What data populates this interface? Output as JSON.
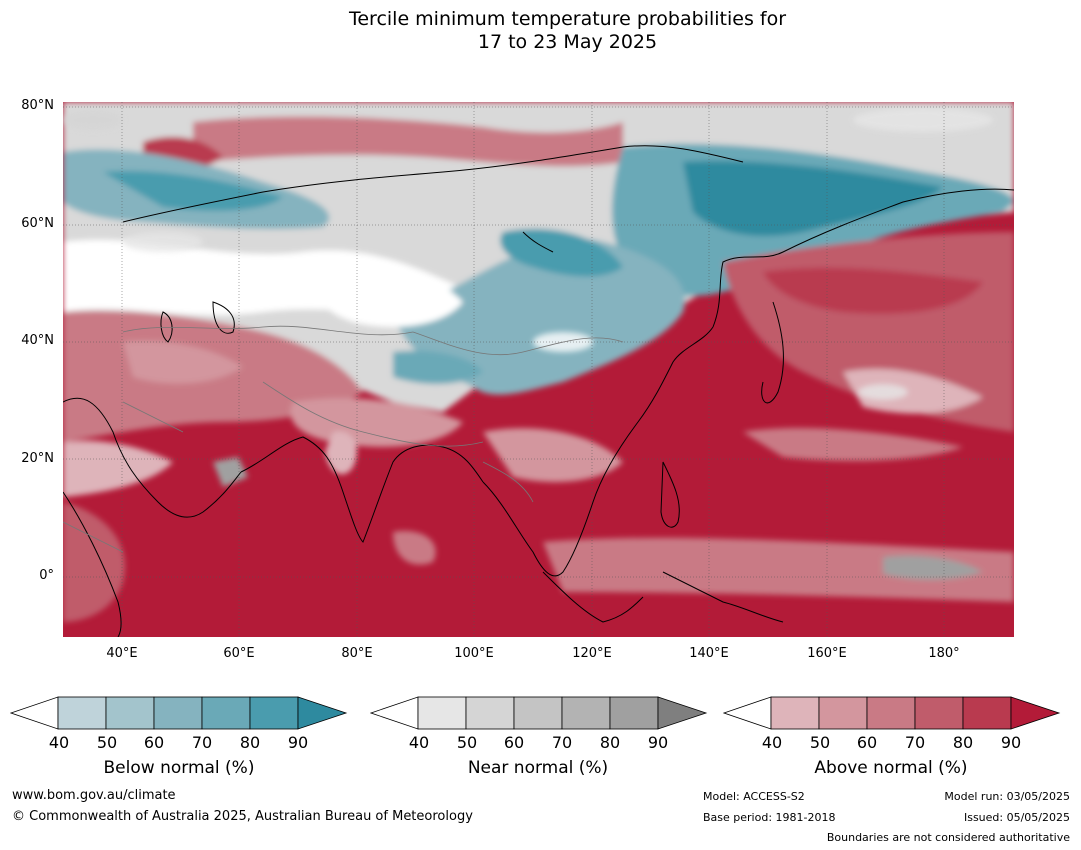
{
  "title": {
    "line1": "Tercile minimum temperature probabilities for",
    "line2": "17 to 23 May 2025"
  },
  "map": {
    "lat_labels": [
      "80°N",
      "60°N",
      "40°N",
      "20°N",
      "0°"
    ],
    "lon_labels": [
      "40°E",
      "60°E",
      "80°E",
      "100°E",
      "120°E",
      "140°E",
      "160°E",
      "180°"
    ]
  },
  "colorbars": [
    {
      "label": "Below normal (%)",
      "ticks": [
        "40",
        "50",
        "60",
        "70",
        "80",
        "90"
      ],
      "colors": [
        "#ffffff",
        "#bfd3da",
        "#a3c4cc",
        "#85b3bf",
        "#6aa9b7",
        "#4a9cae",
        "#2e8a9f"
      ]
    },
    {
      "label": "Near normal (%)",
      "ticks": [
        "40",
        "50",
        "60",
        "70",
        "80",
        "90"
      ],
      "colors": [
        "#ffffff",
        "#e6e6e6",
        "#d5d5d5",
        "#c4c4c4",
        "#b3b3b3",
        "#a0a0a0",
        "#7f7f7f"
      ]
    },
    {
      "label": "Above normal (%)",
      "ticks": [
        "40",
        "50",
        "60",
        "70",
        "80",
        "90"
      ],
      "colors": [
        "#ffffff",
        "#deb4ba",
        "#d3969e",
        "#c97a85",
        "#c05c6b",
        "#b93a4f",
        "#b31b38"
      ]
    }
  ],
  "footer": {
    "website": "www.bom.gov.au/climate",
    "copyright": "© Commonwealth of Australia 2025, Australian Bureau of Meteorology",
    "model": "Model: ACCESS-S2",
    "base_period": "Base period: 1981-2018",
    "model_run": "Model run: 03/05/2025",
    "issued": "Issued: 05/05/2025",
    "boundaries": "Boundaries are not considered authoritative"
  }
}
